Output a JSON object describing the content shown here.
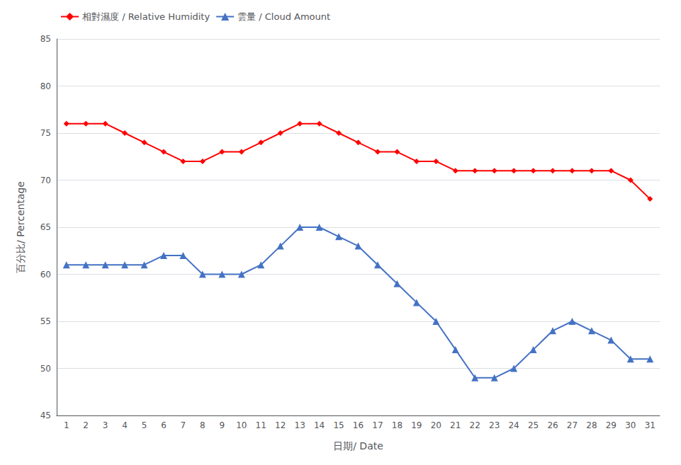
{
  "chart_data": {
    "type": "line",
    "x_label": "日期/ Date",
    "y_label": "百分比/ Percentage",
    "categories": [
      "1",
      "2",
      "3",
      "4",
      "5",
      "6",
      "7",
      "8",
      "9",
      "10",
      "11",
      "12",
      "13",
      "14",
      "15",
      "16",
      "17",
      "18",
      "19",
      "20",
      "21",
      "22",
      "23",
      "24",
      "25",
      "26",
      "27",
      "28",
      "29",
      "30",
      "31"
    ],
    "series": [
      {
        "name": "相對濕度 / Relative Humidity",
        "color": "#FF0000",
        "marker": "diamond",
        "line_style": "solid",
        "values": [
          76,
          76,
          76,
          75,
          74,
          73,
          72,
          72,
          73,
          73,
          74,
          75,
          76,
          76,
          75,
          74,
          73,
          73,
          72,
          72,
          71,
          71,
          71,
          71,
          71,
          71,
          71,
          71,
          71,
          70,
          68
        ]
      },
      {
        "name": "雲量 / Cloud Amount",
        "color": "#4472C4",
        "marker": "triangle",
        "line_style": "solid",
        "values": [
          61,
          61,
          61,
          61,
          61,
          62,
          62,
          60,
          60,
          60,
          61,
          63,
          65,
          65,
          64,
          63,
          61,
          59,
          57,
          55,
          52,
          49,
          49,
          50,
          52,
          54,
          55,
          54,
          53,
          51,
          51
        ]
      }
    ],
    "ylim": [
      45,
      85
    ],
    "yticks": [
      45,
      50,
      55,
      60,
      65,
      70,
      75,
      80,
      85
    ],
    "grid": true,
    "legend": "upper left"
  }
}
